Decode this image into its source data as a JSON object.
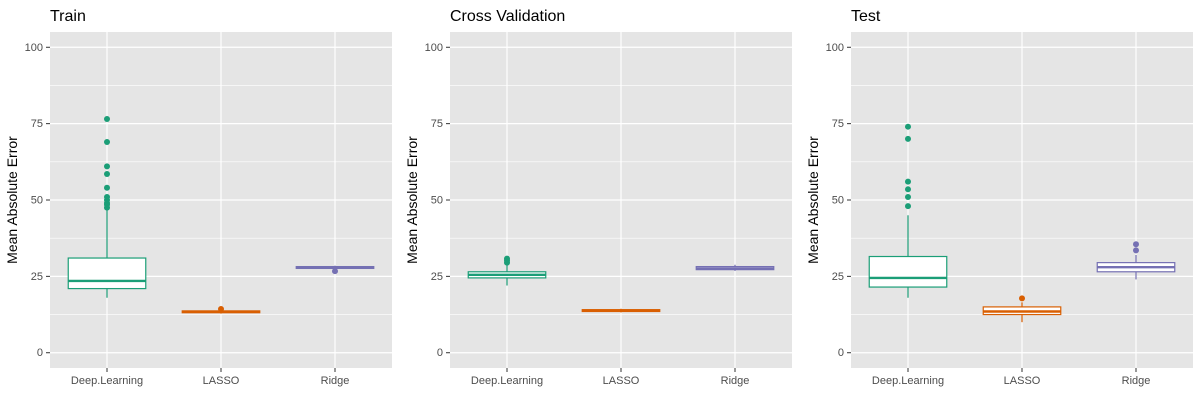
{
  "colors": {
    "panel_bg": "#e5e5e5",
    "grid": "#ffffff",
    "Deep.Learning": "#1b9e77",
    "LASSO": "#d95f02",
    "Ridge": "#7570b3"
  },
  "chart_data": [
    {
      "type": "box",
      "title": "Train",
      "xlabel": "",
      "ylabel": "Mean Absolute Error",
      "ylim": [
        -5,
        105
      ],
      "yticks": [
        0,
        25,
        50,
        75,
        100
      ],
      "categories": [
        "Deep.Learning",
        "LASSO",
        "Ridge"
      ],
      "grid": true,
      "legend": "none",
      "boxes": [
        {
          "category": "Deep.Learning",
          "whisker_low": 18,
          "q1": 21,
          "median": 23.5,
          "q3": 31,
          "whisker_high": 47,
          "outliers": [
            47.5,
            48.5,
            49,
            50,
            51,
            54,
            58.5,
            61,
            69,
            76.5
          ]
        },
        {
          "category": "LASSO",
          "whisker_low": 12.8,
          "q1": 13.1,
          "median": 13.4,
          "q3": 13.7,
          "whisker_high": 14.1,
          "outliers": [
            14.3
          ]
        },
        {
          "category": "Ridge",
          "whisker_low": 27.4,
          "q1": 27.6,
          "median": 27.9,
          "q3": 28.2,
          "whisker_high": 28.5,
          "outliers": [
            26.7
          ]
        }
      ]
    },
    {
      "type": "box",
      "title": "Cross Validation",
      "xlabel": "",
      "ylabel": "Mean Absolute Error",
      "ylim": [
        -5,
        105
      ],
      "yticks": [
        0,
        25,
        50,
        75,
        100
      ],
      "categories": [
        "Deep.Learning",
        "LASSO",
        "Ridge"
      ],
      "grid": true,
      "legend": "none",
      "boxes": [
        {
          "category": "Deep.Learning",
          "whisker_low": 22,
          "q1": 24.5,
          "median": 25.5,
          "q3": 26.5,
          "whisker_high": 29,
          "outliers": [
            29.5,
            30.2,
            30.8
          ]
        },
        {
          "category": "LASSO",
          "whisker_low": 13.2,
          "q1": 13.5,
          "median": 13.8,
          "q3": 14.1,
          "whisker_high": 14.4,
          "outliers": []
        },
        {
          "category": "Ridge",
          "whisker_low": 26.8,
          "q1": 27.2,
          "median": 27.6,
          "q3": 28.2,
          "whisker_high": 28.8,
          "outliers": []
        }
      ]
    },
    {
      "type": "box",
      "title": "Test",
      "xlabel": "",
      "ylabel": "Mean Absolute Error",
      "ylim": [
        -5,
        105
      ],
      "yticks": [
        0,
        25,
        50,
        75,
        100
      ],
      "categories": [
        "Deep.Learning",
        "LASSO",
        "Ridge"
      ],
      "grid": true,
      "legend": "none",
      "boxes": [
        {
          "category": "Deep.Learning",
          "whisker_low": 18,
          "q1": 21.5,
          "median": 24.5,
          "q3": 31.5,
          "whisker_high": 45,
          "outliers": [
            48,
            51,
            53.5,
            56,
            70,
            74
          ]
        },
        {
          "category": "LASSO",
          "whisker_low": 10,
          "q1": 12.5,
          "median": 13.5,
          "q3": 15,
          "whisker_high": 16.5,
          "outliers": [
            17.8
          ]
        },
        {
          "category": "Ridge",
          "whisker_low": 24,
          "q1": 26.5,
          "median": 28,
          "q3": 29.5,
          "whisker_high": 32,
          "outliers": [
            33.5,
            35.5
          ]
        }
      ]
    }
  ]
}
